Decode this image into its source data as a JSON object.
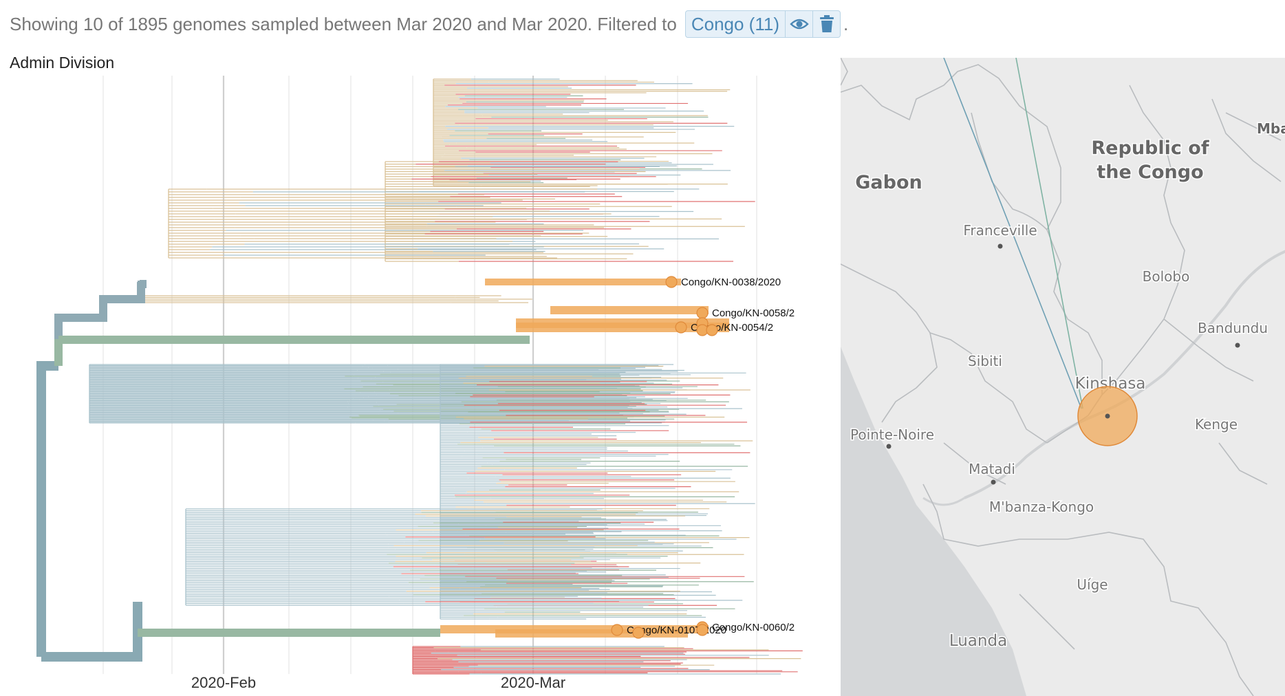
{
  "summary": {
    "prefix": "Showing 10 of 1895 genomes sampled between Mar 2020 and Mar 2020. Filtered to",
    "filter_label": "Congo (11)",
    "suffix": "."
  },
  "tree": {
    "title": "Admin Division",
    "axis_labels": [
      "2020-Feb",
      "2020-Mar"
    ],
    "tip_labels": [
      "Congo/KN-0038/2020",
      "Congo/KN-0058/2",
      "Congo/KN-0054/2",
      "Congo/KN-0060/2",
      "Congo/KN-0107/2020"
    ]
  },
  "map": {
    "places": [
      {
        "name": "Republic of",
        "kind": "country"
      },
      {
        "name": "the Congo",
        "kind": "country"
      },
      {
        "name": "Gabon",
        "kind": "country"
      },
      {
        "name": "Mba",
        "kind": "country"
      },
      {
        "name": "Franceville",
        "kind": "city"
      },
      {
        "name": "Bolobo",
        "kind": "city"
      },
      {
        "name": "Bandundu",
        "kind": "city"
      },
      {
        "name": "Sibiti",
        "kind": "city"
      },
      {
        "name": "Kinshasa",
        "kind": "city"
      },
      {
        "name": "Kenge",
        "kind": "city"
      },
      {
        "name": "Pointe-Noire",
        "kind": "city"
      },
      {
        "name": "Matadi",
        "kind": "city"
      },
      {
        "name": "M'banza-Kongo",
        "kind": "city"
      },
      {
        "name": "Uíge",
        "kind": "city"
      },
      {
        "name": "Luanda",
        "kind": "city"
      }
    ]
  },
  "colors": {
    "congo": "#f0a95a",
    "trunk": "#89a9b3",
    "green": "#98b8a2",
    "tan": "#d9c196",
    "red": "#e07070",
    "blue": "#a9c2cc",
    "filter_blue": "#4a87b5"
  }
}
